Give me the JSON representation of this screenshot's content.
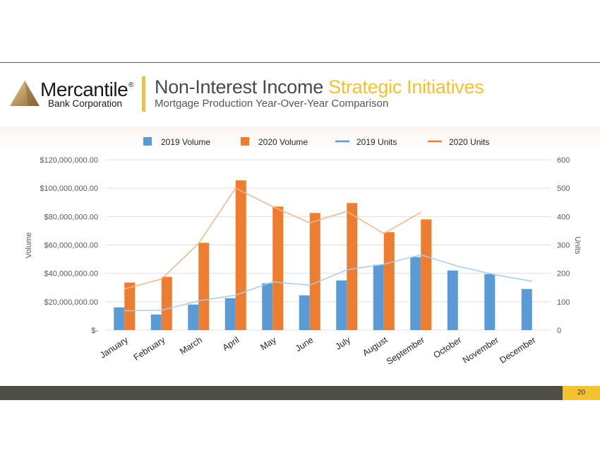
{
  "header": {
    "logo_name": "Mercantile",
    "logo_reg": "®",
    "logo_sub": "Bank Corporation",
    "title_main": "Non-Interest Income",
    "title_highlight": "Strategic Initiatives",
    "subtitle": "Mortgage Production Year-Over-Year Comparison"
  },
  "footer": {
    "page_number": "20"
  },
  "colors": {
    "vol2019": "#5b9bd5",
    "vol2020": "#ed7d31",
    "units2019": "#a9cbe9",
    "units2020": "#f5b48a",
    "accent": "#f2c230"
  },
  "chart_data": {
    "type": "bar",
    "categories": [
      "January",
      "February",
      "March",
      "April",
      "May",
      "June",
      "July",
      "August",
      "September",
      "October",
      "November",
      "December"
    ],
    "series": [
      {
        "name": "2019 Volume",
        "type": "bar",
        "axis": "left",
        "values": [
          16000000,
          11000000,
          18000000,
          22500000,
          33000000,
          24500000,
          35000000,
          46000000,
          51500000,
          42000000,
          39500000,
          29000000
        ]
      },
      {
        "name": "2020 Volume",
        "type": "bar",
        "axis": "left",
        "values": [
          33500000,
          37500000,
          61500000,
          105500000,
          87000000,
          82500000,
          89500000,
          69000000,
          78000000,
          null,
          null,
          null
        ]
      },
      {
        "name": "2019 Units",
        "type": "line",
        "axis": "right",
        "values": [
          68,
          70,
          103,
          123,
          170,
          158,
          212,
          232,
          265,
          225,
          195,
          172
        ]
      },
      {
        "name": "2020 Units",
        "type": "line",
        "axis": "right",
        "values": [
          145,
          180,
          305,
          500,
          435,
          378,
          418,
          340,
          415,
          null,
          null,
          null
        ]
      }
    ],
    "left_axis": {
      "label": "Volume",
      "range": [
        0,
        120000000
      ],
      "ticks": [
        "$-",
        "$20,000,000.00",
        "$40,000,000.00",
        "$60,000,000.00",
        "$80,000,000.00",
        "$100,000,000.00",
        "$120,000,000.00"
      ]
    },
    "right_axis": {
      "label": "Units",
      "range": [
        0,
        600
      ],
      "ticks": [
        "0",
        "100",
        "200",
        "300",
        "400",
        "500",
        "600"
      ]
    },
    "grid": true,
    "legend_position": "top"
  }
}
